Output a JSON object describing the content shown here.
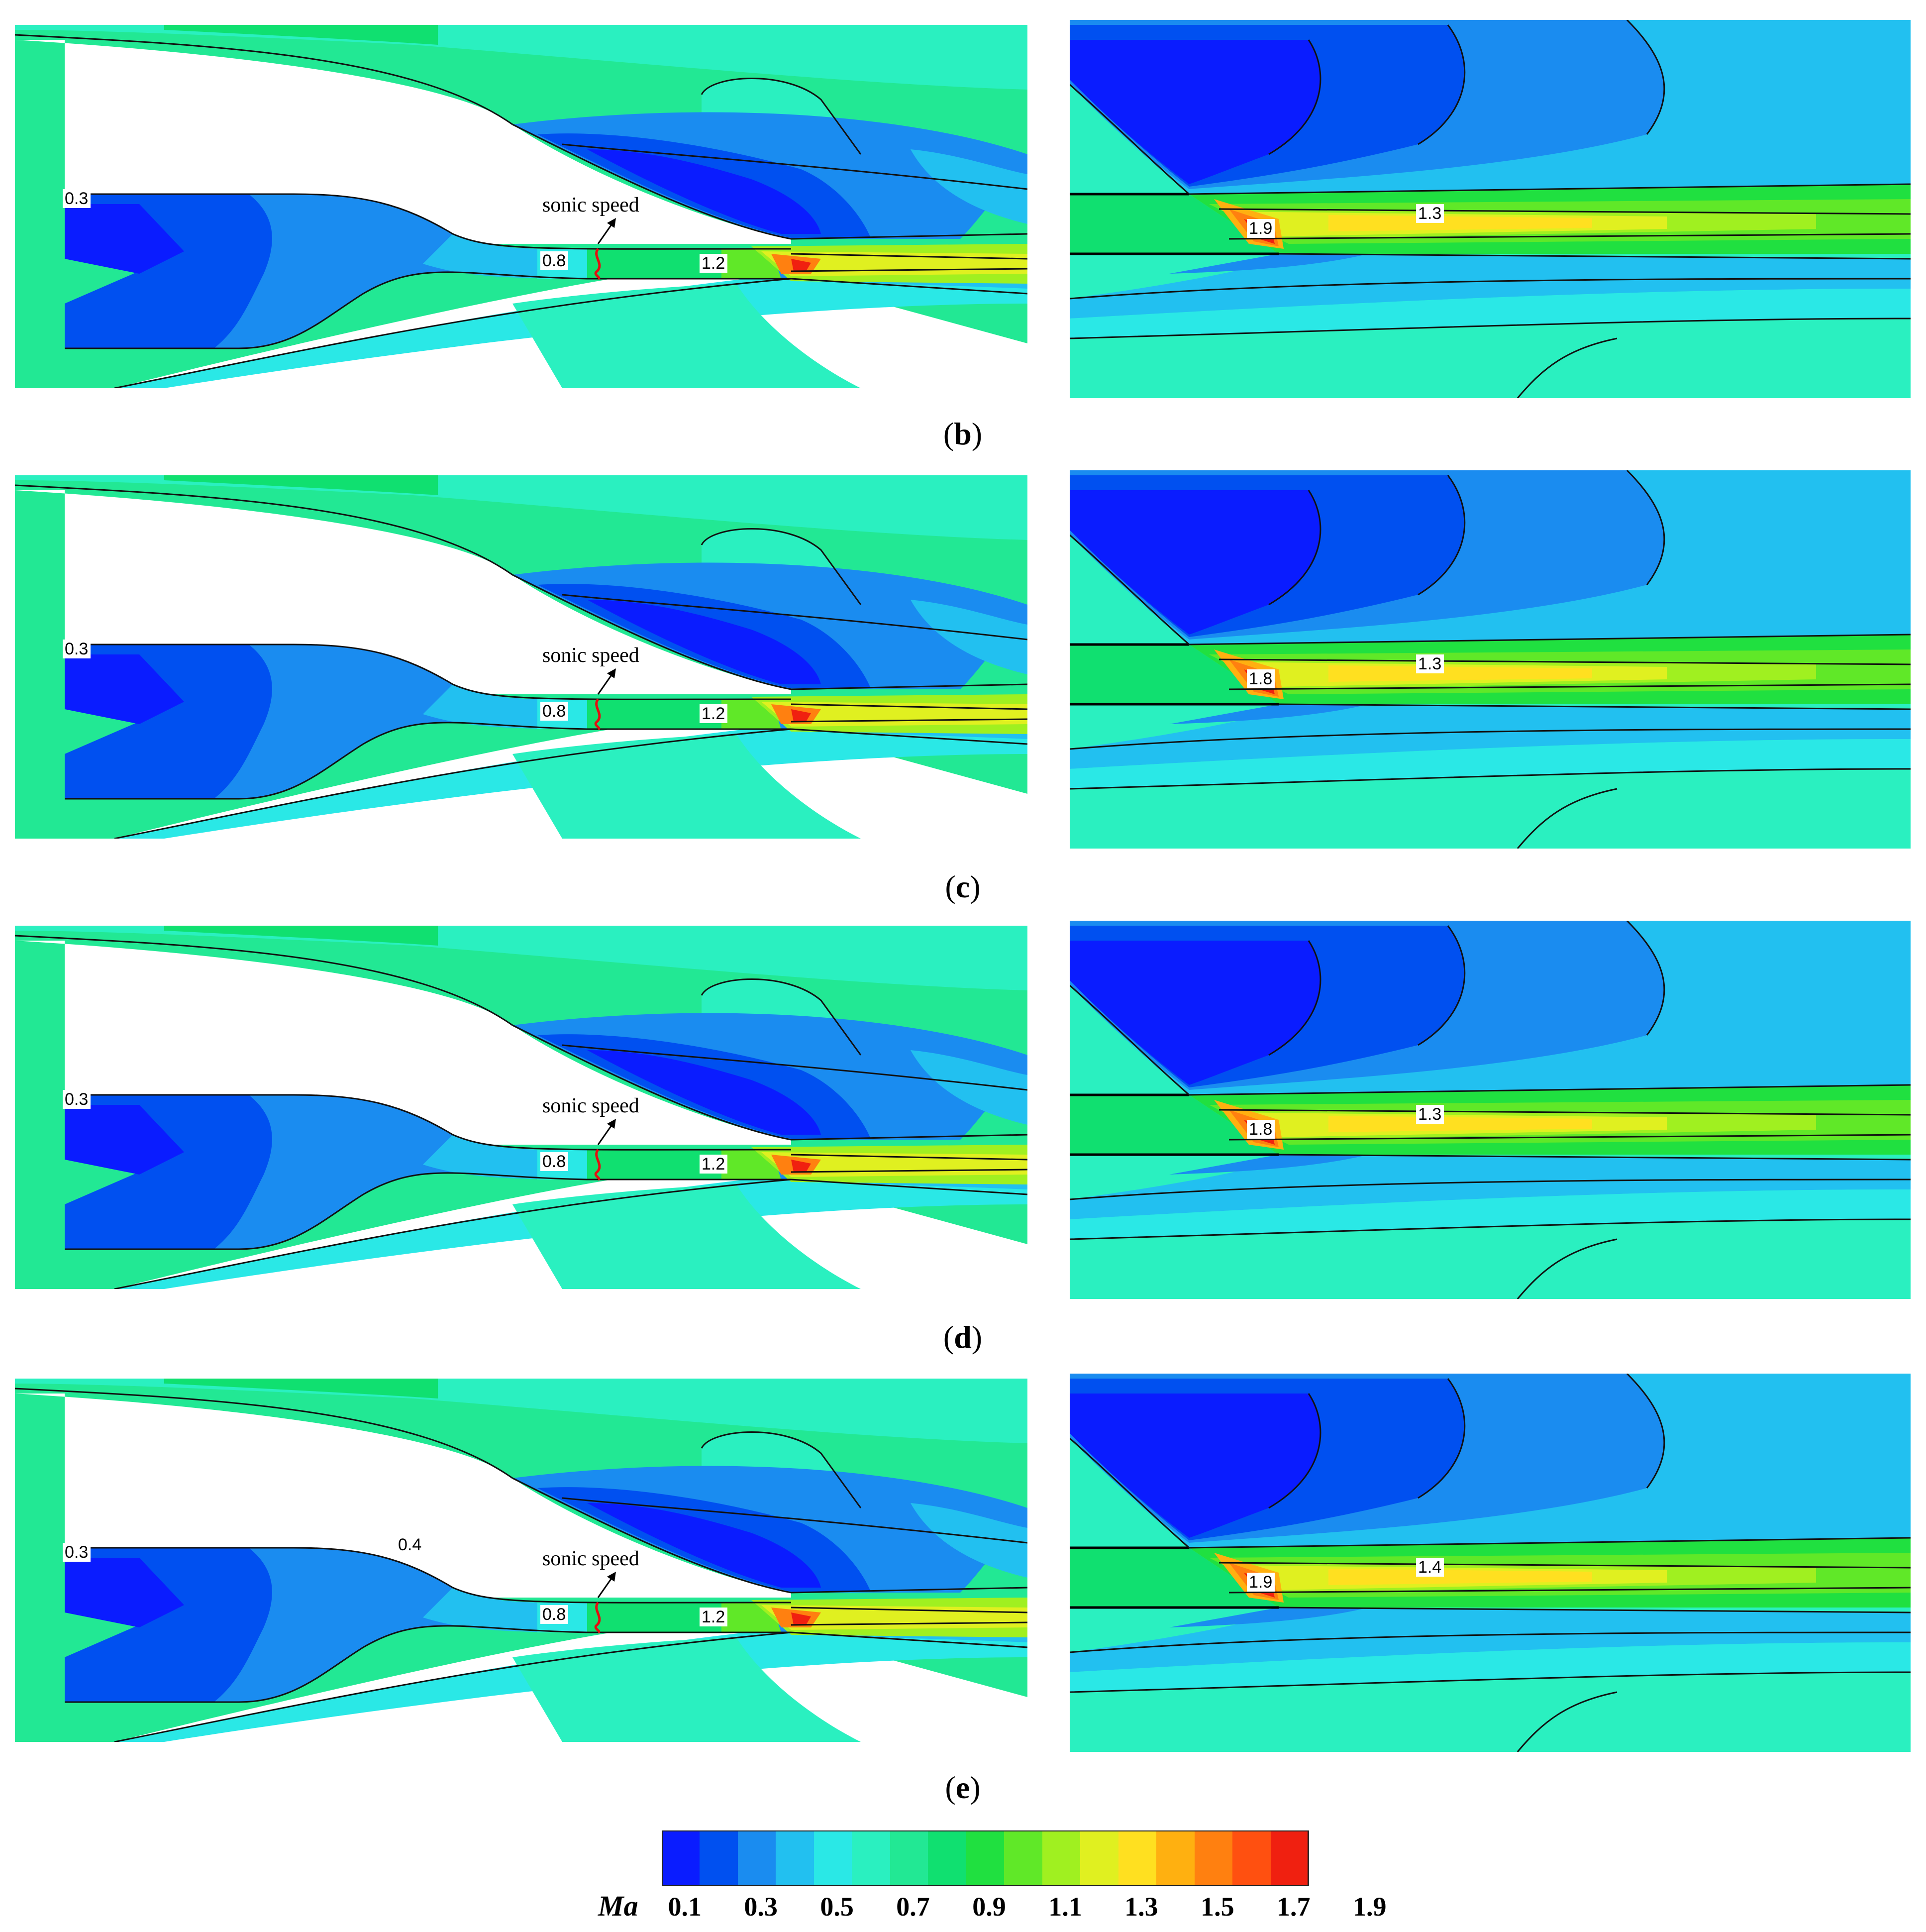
{
  "figure": {
    "rows": [
      {
        "id": "b",
        "caption": "b",
        "inlet_label": "0.3",
        "throat_label": "0.8",
        "exit_label": "1.2",
        "extra_label": "",
        "annotation": "sonic speed",
        "right_peak_label": "1.9",
        "right_core_label": "1.3"
      },
      {
        "id": "c",
        "caption": "c",
        "inlet_label": "0.3",
        "throat_label": "0.8",
        "exit_label": "1.2",
        "extra_label": "",
        "annotation": "sonic speed",
        "right_peak_label": "1.8",
        "right_core_label": "1.3"
      },
      {
        "id": "d",
        "caption": "d",
        "inlet_label": "0.3",
        "throat_label": "0.8",
        "exit_label": "1.2",
        "extra_label": "",
        "annotation": "sonic speed",
        "right_peak_label": "1.8",
        "right_core_label": "1.3"
      },
      {
        "id": "e",
        "caption": "e",
        "inlet_label": "0.3",
        "throat_label": "0.8",
        "exit_label": "1.2",
        "extra_label": "0.4",
        "annotation": "sonic speed",
        "right_peak_label": "1.9",
        "right_core_label": "1.4"
      }
    ]
  },
  "colorbar": {
    "title": "Ma",
    "tick_labels": [
      "0.1",
      "0.3",
      "0.5",
      "0.7",
      "0.9",
      "1.1",
      "1.3",
      "1.5",
      "1.7",
      "1.9"
    ],
    "colors": [
      "#0a1cff",
      "#0050f0",
      "#1a8cf0",
      "#22c0f0",
      "#2ae8e6",
      "#2af0c0",
      "#22e894",
      "#10e070",
      "#20e040",
      "#60e828",
      "#a0f020",
      "#e0f020",
      "#ffe020",
      "#ffb010",
      "#ff8010",
      "#ff5010",
      "#f02010"
    ]
  }
}
